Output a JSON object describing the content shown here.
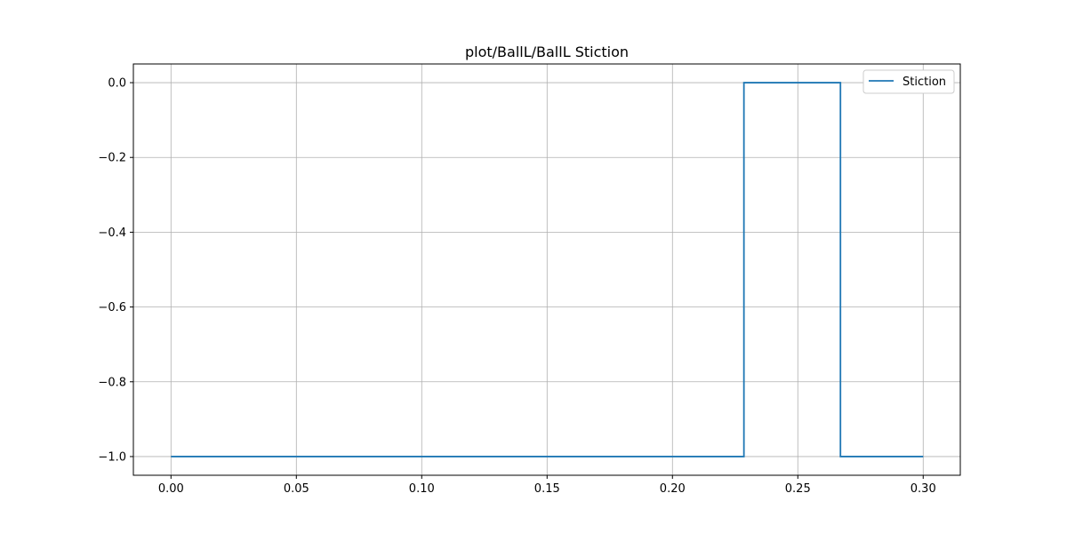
{
  "chart_data": {
    "type": "line",
    "title": "plot/BallL/BallL Stiction",
    "xlabel": "",
    "ylabel": "",
    "xlim": [
      -0.015,
      0.3148
    ],
    "ylim": [
      -1.05,
      0.05
    ],
    "xticks": [
      0.0,
      0.05,
      0.1,
      0.15,
      0.2,
      0.25,
      0.3
    ],
    "xtick_labels": [
      "0.00",
      "0.05",
      "0.10",
      "0.15",
      "0.20",
      "0.25",
      "0.30"
    ],
    "yticks": [
      0.0,
      -0.2,
      -0.4,
      -0.6,
      -0.8,
      -1.0
    ],
    "ytick_labels": [
      "0.0",
      "−0.2",
      "−0.4",
      "−0.6",
      "−0.8",
      "−1.0"
    ],
    "grid": true,
    "legend_position": "top-right",
    "series": [
      {
        "name": "Stiction",
        "color": "#1f77b4",
        "x": [
          0.0,
          0.2285,
          0.2285,
          0.267,
          0.267,
          0.3
        ],
        "y": [
          -1.0,
          -1.0,
          0.0,
          0.0,
          -1.0,
          -1.0
        ]
      }
    ]
  }
}
